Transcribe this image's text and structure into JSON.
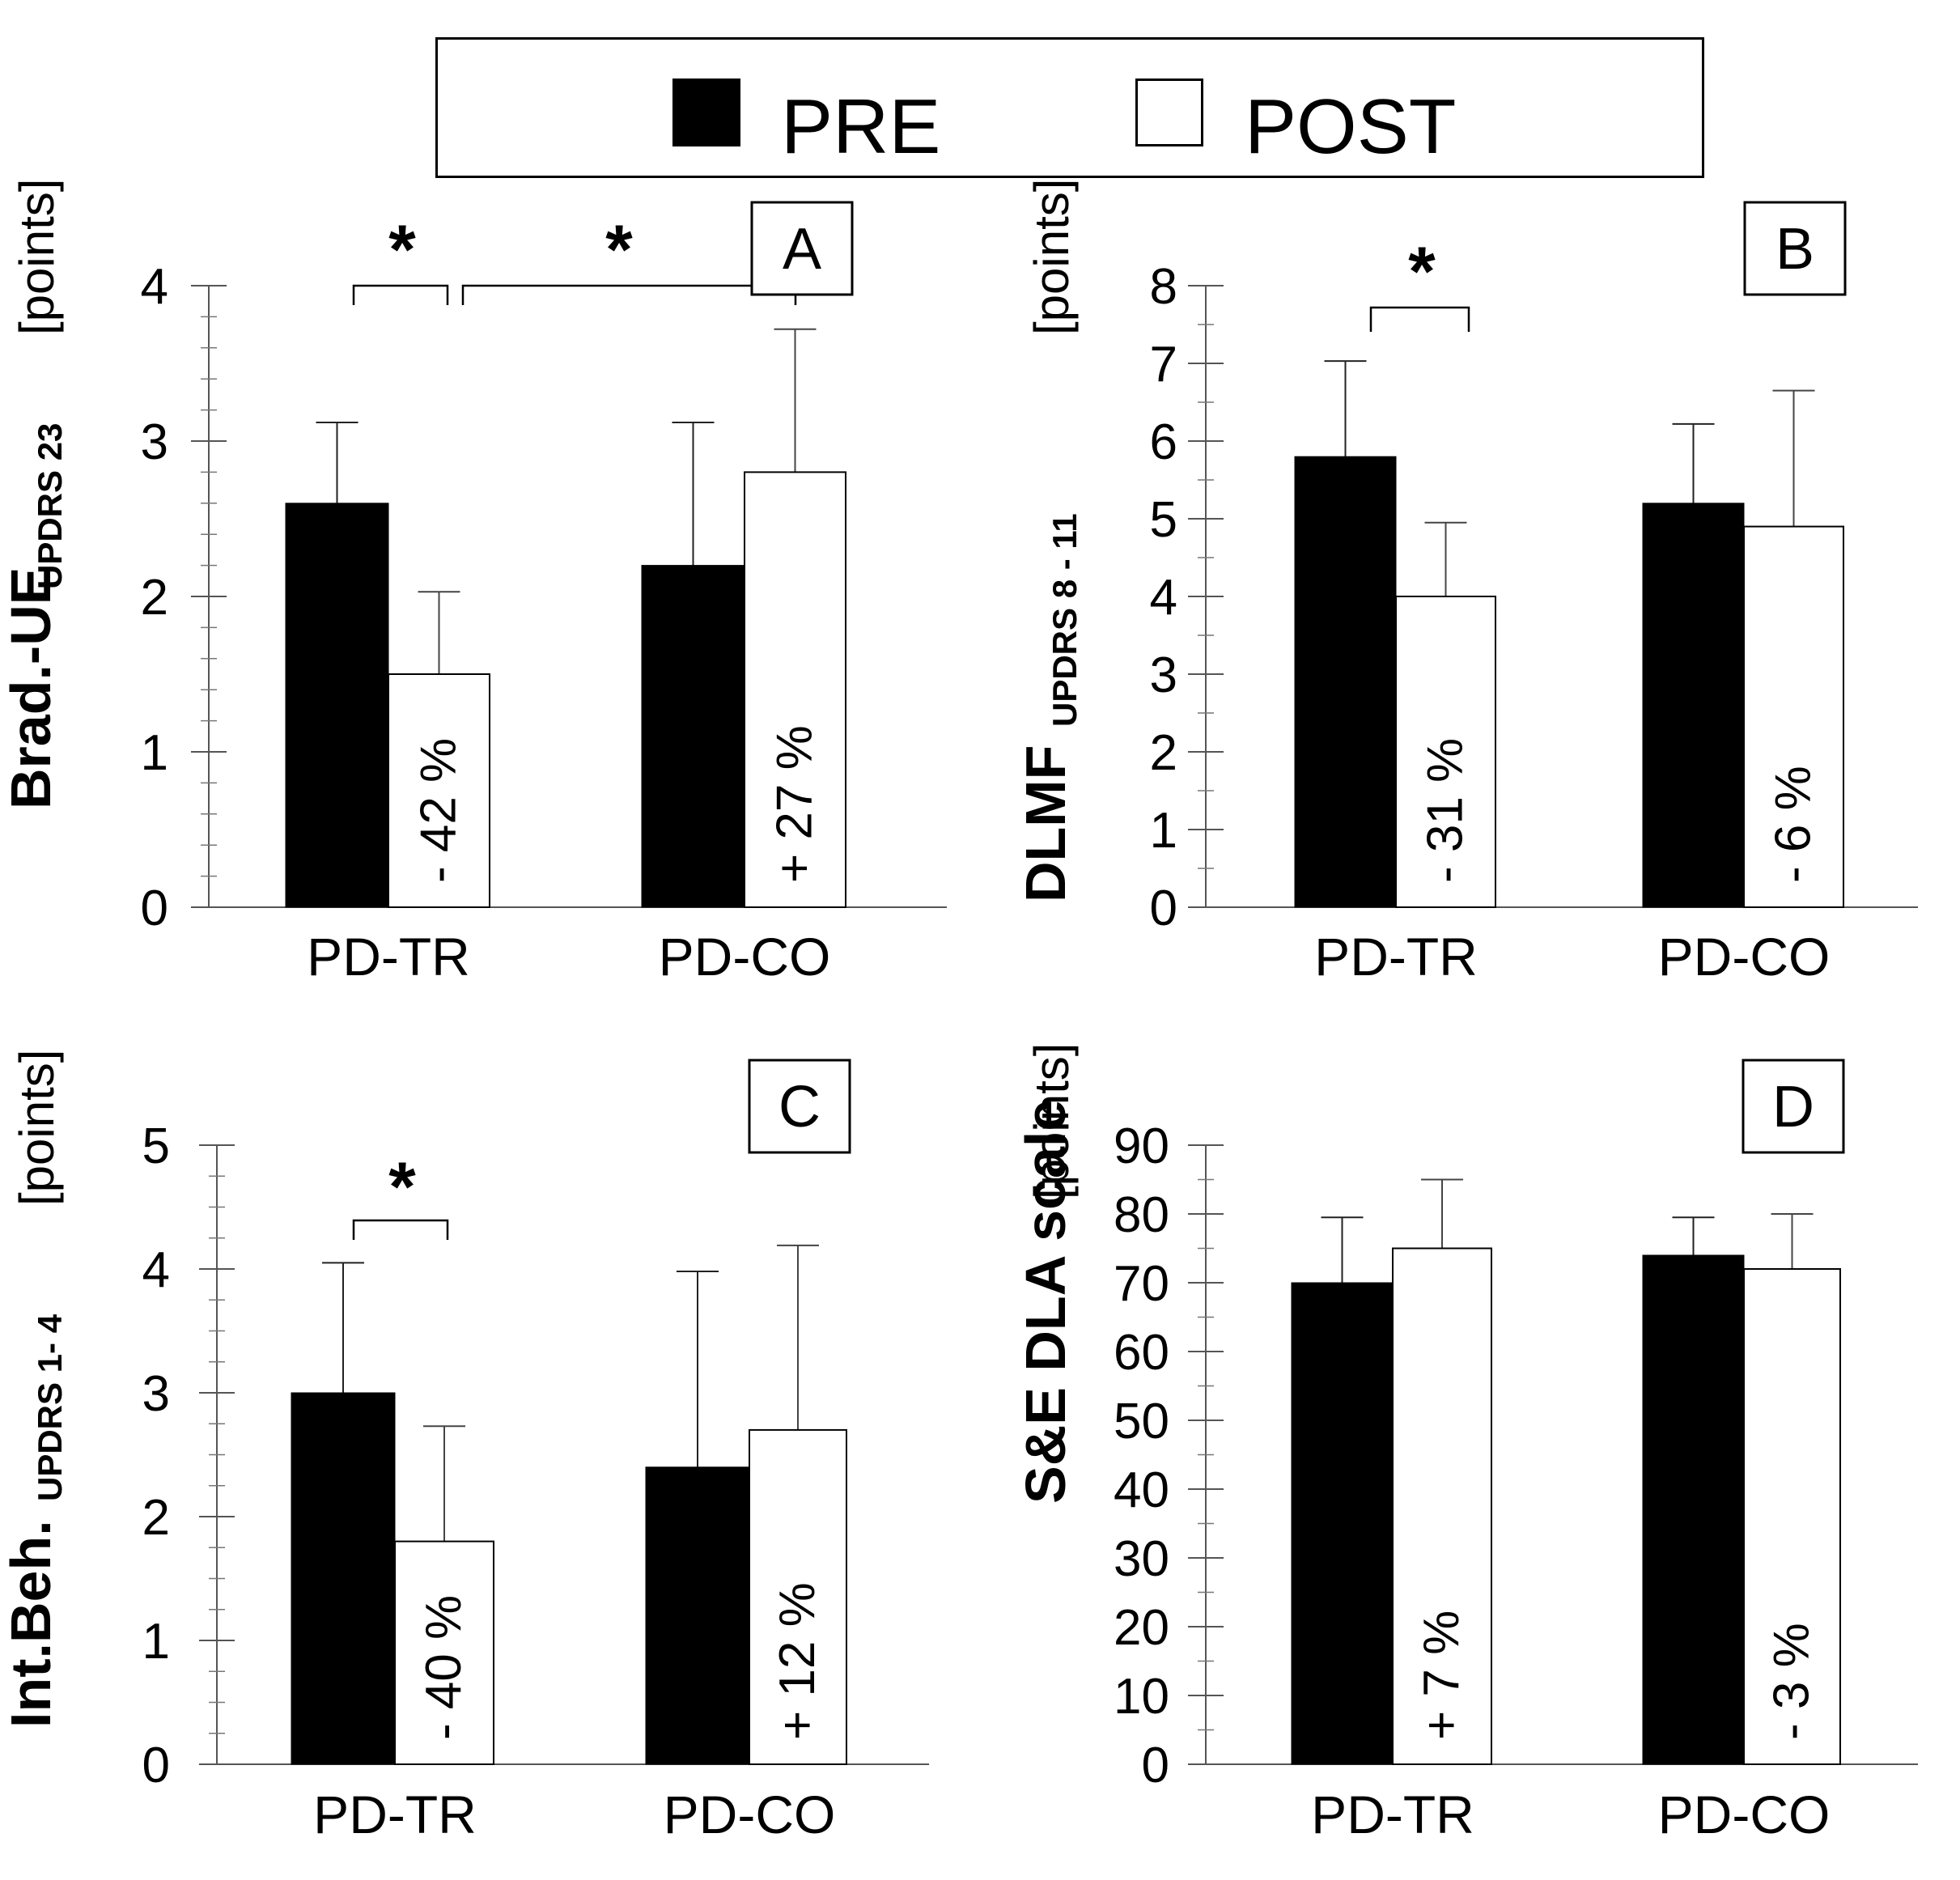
{
  "legend": {
    "pre_label": "PRE",
    "post_label": "POST",
    "pre_color": "#000000",
    "post_color": "#ffffff"
  },
  "chart_data": [
    {
      "type": "bar",
      "panel": "A",
      "ylabel_main": "Brad.-UE",
      "ylabel_sub": "UPDRS 23",
      "ylabel_unit": "[points]",
      "ylim": [
        0,
        4
      ],
      "ymajor": [
        0,
        1,
        2,
        3,
        4
      ],
      "minor_step": 0.2,
      "categories": [
        "PD-TR",
        "PD-CO"
      ],
      "series": [
        {
          "name": "PRE",
          "values": [
            2.6,
            2.2
          ],
          "errors": [
            0.52,
            0.92
          ]
        },
        {
          "name": "POST",
          "values": [
            1.5,
            2.8
          ],
          "errors": [
            0.53,
            0.92
          ]
        }
      ],
      "change_labels": [
        "- 42 %",
        "+ 27 %"
      ],
      "significance": [
        {
          "label": "*",
          "from": "PD-TR PRE",
          "to": "PD-TR POST"
        },
        {
          "label": "*",
          "from": "PD-TR POST",
          "to": "PD-CO POST"
        }
      ]
    },
    {
      "type": "bar",
      "panel": "B",
      "ylabel_main": "DLMF",
      "ylabel_sub": "UPDRS 8 - 11",
      "ylabel_unit": "[points]",
      "ylim": [
        0,
        8
      ],
      "ymajor": [
        0,
        1,
        2,
        3,
        4,
        5,
        6,
        7,
        8
      ],
      "minor_step": 0.5,
      "categories": [
        "PD-TR",
        "PD-CO"
      ],
      "series": [
        {
          "name": "PRE",
          "values": [
            5.8,
            5.2
          ],
          "errors": [
            1.23,
            1.02
          ]
        },
        {
          "name": "POST",
          "values": [
            4.0,
            4.9
          ],
          "errors": [
            0.95,
            1.75
          ]
        }
      ],
      "change_labels": [
        "- 31 %",
        "- 6 %"
      ],
      "significance": [
        {
          "label": "*",
          "from": "PD-TR PRE",
          "to": "PD-TR POST"
        }
      ]
    },
    {
      "type": "bar",
      "panel": "C",
      "ylabel_main": "Int.Beh.",
      "ylabel_sub": "UPDRS 1- 4",
      "ylabel_unit": "[points]",
      "ylim": [
        0,
        5
      ],
      "ymajor": [
        0,
        1,
        2,
        3,
        4,
        5
      ],
      "minor_step": 0.25,
      "categories": [
        "PD-TR",
        "PD-CO"
      ],
      "series": [
        {
          "name": "PRE",
          "values": [
            3.0,
            2.4
          ],
          "errors": [
            1.05,
            1.58
          ]
        },
        {
          "name": "POST",
          "values": [
            1.8,
            2.7
          ],
          "errors": [
            0.93,
            1.49
          ]
        }
      ],
      "change_labels": [
        "- 40 %",
        "+ 12 %"
      ],
      "significance": [
        {
          "label": "*",
          "from": "PD-TR PRE",
          "to": "PD-TR POST"
        }
      ]
    },
    {
      "type": "bar",
      "panel": "D",
      "ylabel_main": "S&E DLA scale",
      "ylabel_sub": "",
      "ylabel_unit": "[points]",
      "ylim": [
        0,
        90
      ],
      "ymajor": [
        0,
        10,
        20,
        30,
        40,
        50,
        60,
        70,
        80,
        90
      ],
      "minor_step": 5,
      "categories": [
        "PD-TR",
        "PD-CO"
      ],
      "series": [
        {
          "name": "PRE",
          "values": [
            70,
            74
          ],
          "errors": [
            9.5,
            5.5
          ]
        },
        {
          "name": "POST",
          "values": [
            75,
            72
          ],
          "errors": [
            10,
            8
          ]
        }
      ],
      "change_labels": [
        "+ 7 %",
        "- 3 %"
      ],
      "significance": []
    }
  ]
}
